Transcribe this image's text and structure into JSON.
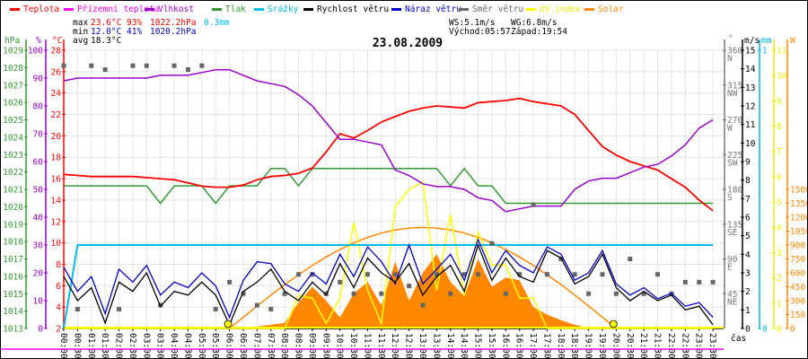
{
  "chart_data": {
    "type": "line",
    "title": "23.08.2009",
    "xlabel": "čas",
    "legend_placement": "top",
    "grid": true,
    "legend": [
      {
        "label": "Teplota",
        "color": "#ff0000"
      },
      {
        "label": "Přízemní teplota",
        "color": "#ff00ff"
      },
      {
        "label": "Vlhkost",
        "color": "#9900cc"
      },
      {
        "label": "Tlak",
        "color": "#339933"
      },
      {
        "label": "Srážky",
        "color": "#00bbee"
      },
      {
        "label": "Rychlost větru",
        "color": "#000000"
      },
      {
        "label": "Náraz větru",
        "color": "#0000cc"
      },
      {
        "label": "Směr větru",
        "color": "#666666"
      },
      {
        "label": "UV index",
        "color": "#ffff00"
      },
      {
        "label": "Solar",
        "color": "#ff8800"
      }
    ],
    "stats": {
      "max_label": "max",
      "max_temp": "23.6°C",
      "max_hum": "93%",
      "max_press": "1022.2hPa",
      "max_rain": "0.3mm",
      "min_label": "min",
      "min_temp": "12.0°C",
      "min_hum": "41%",
      "min_press": "1020.2hPa",
      "avg_label": "avg",
      "avg_temp": "18.3°C",
      "ws": "WS:5.1m/s",
      "wg": "WG:6.8m/s",
      "sunrise": "Východ:05:57",
      "sunset": "Západ:19:54"
    },
    "x_ticks": [
      "00:00",
      "00:30",
      "01:00",
      "01:30",
      "02:00",
      "02:30",
      "03:00",
      "03:30",
      "04:00",
      "04:30",
      "05:00",
      "05:30",
      "06:00",
      "06:30",
      "07:00",
      "07:30",
      "08:00",
      "08:30",
      "09:00",
      "09:30",
      "10:00",
      "10:30",
      "11:00",
      "11:30",
      "12:00",
      "12:30",
      "13:00",
      "13:30",
      "14:00",
      "14:30",
      "15:00",
      "15:30",
      "16:00",
      "16:30",
      "17:00",
      "17:30",
      "18:00",
      "18:30",
      "19:00",
      "19:30",
      "20:00",
      "20:30",
      "21:00",
      "21:30",
      "22:00",
      "22:30",
      "23:00",
      "23:30"
    ],
    "axes": {
      "hpa": {
        "label": "hPa",
        "range": [
          1013,
          1029
        ],
        "ticks": [
          "1029",
          "1028",
          "1027",
          "1026",
          "1025",
          "1024",
          "1023",
          "1022",
          "1021",
          "1020",
          "1019",
          "1018",
          "1017",
          "1016",
          "1015",
          "1014",
          "1013"
        ],
        "color": "#339933"
      },
      "pct": {
        "label": "%",
        "range": [
          0,
          100
        ],
        "ticks": [
          "100",
          "90",
          "80",
          "70",
          "60",
          "50",
          "40",
          "30",
          "20",
          "10",
          "0"
        ],
        "color": "#9900cc"
      },
      "temp": {
        "label": "°C",
        "range": [
          2,
          28
        ],
        "ticks": [
          "28",
          "26",
          "24",
          "22",
          "20",
          "18",
          "16",
          "14",
          "12",
          "10",
          "8",
          "6",
          "4",
          "2"
        ],
        "color": "#ff0000"
      },
      "dir": {
        "label": "°",
        "range": [
          0,
          360
        ],
        "ticks": [
          "360",
          "315",
          "270",
          "225",
          "180",
          "135",
          "90",
          "45"
        ],
        "names": [
          "N",
          "NW",
          "W",
          "SW",
          "S",
          "SE",
          "E",
          "NE"
        ],
        "color": "#777777"
      },
      "ms": {
        "label": "m/s",
        "range": [
          0,
          15
        ],
        "ticks": [
          "15",
          "14",
          "13",
          "12",
          "11",
          "10",
          "9",
          "8",
          "7",
          "6",
          "5",
          "4",
          "3",
          "2",
          "1",
          "0"
        ],
        "color": "#000000"
      },
      "mm": {
        "label": "mm",
        "range": [
          0,
          1
        ],
        "ticks": [
          "1",
          "0"
        ],
        "color": "#00bbee"
      },
      "uv": {
        "range": [
          0,
          11
        ],
        "ticks": [
          "11",
          "10",
          "9",
          "8",
          "7",
          "6",
          "5",
          "4",
          "3",
          "2",
          "1",
          "0"
        ],
        "color": "#eeee00"
      },
      "w": {
        "label": "W",
        "range": [
          0,
          3000
        ],
        "ticks": [
          "1500",
          "1350",
          "1200",
          "1050",
          "900",
          "750",
          "600",
          "450",
          "300",
          "150",
          "0"
        ],
        "color": "#ff8800"
      }
    },
    "x_hours": [
      0,
      0.5,
      1,
      1.5,
      2,
      2.5,
      3,
      3.5,
      4,
      4.5,
      5,
      5.5,
      6,
      6.5,
      7,
      7.5,
      8,
      8.5,
      9,
      9.5,
      10,
      10.5,
      11,
      11.5,
      12,
      12.5,
      13,
      13.5,
      14,
      14.5,
      15,
      15.5,
      16,
      16.5,
      17,
      17.5,
      18,
      18.5,
      19,
      19.5,
      20,
      20.5,
      21,
      21.5,
      22,
      22.5,
      23,
      23.5
    ],
    "series": {
      "temperature": [
        16.4,
        16.3,
        16.2,
        16.2,
        16.2,
        16.2,
        16.1,
        16.0,
        15.9,
        15.6,
        15.3,
        15.2,
        15.2,
        15.4,
        15.9,
        16.2,
        16.3,
        16.5,
        17.0,
        18.5,
        20.2,
        19.8,
        20.5,
        21.3,
        21.8,
        22.3,
        22.6,
        22.8,
        22.7,
        22.6,
        23.1,
        23.2,
        23.3,
        23.5,
        23.2,
        23.0,
        22.8,
        22.0,
        20.5,
        19.0,
        18.2,
        17.6,
        17.2,
        16.8,
        16.0,
        15.2,
        14.0,
        13.0
      ],
      "humidity": [
        89,
        90,
        90,
        90,
        90,
        90,
        90,
        91,
        91,
        91,
        92,
        93,
        93,
        91,
        89,
        88,
        87,
        84,
        80,
        74,
        68,
        68,
        67,
        66,
        57,
        55,
        52,
        51,
        51,
        50,
        47,
        46,
        42,
        43,
        44,
        44,
        44,
        50,
        53,
        54,
        54,
        56,
        58,
        59,
        62,
        66,
        72,
        75
      ],
      "pressure": [
        1021.2,
        1021.2,
        1021.2,
        1021.2,
        1021.2,
        1021.2,
        1021.2,
        1020.2,
        1021.2,
        1021.2,
        1021.2,
        1020.2,
        1021.2,
        1021.2,
        1021.2,
        1022.2,
        1022.2,
        1021.2,
        1022.2,
        1022.2,
        1022.2,
        1022.2,
        1022.2,
        1022.2,
        1022.2,
        1022.2,
        1022.2,
        1022.2,
        1021.2,
        1022.2,
        1021.2,
        1021.2,
        1020.2,
        1020.2,
        1020.2,
        1020.2,
        1020.2,
        1020.2,
        1020.2,
        1020.2,
        1020.2,
        1020.2,
        1020.2,
        1020.2,
        1020.2,
        1020.2,
        1020.2,
        1020.2
      ],
      "rain": [
        0,
        0.3,
        0.3,
        0.3,
        0.3,
        0.3,
        0.3,
        0.3,
        0.3,
        0.3,
        0.3,
        0.3,
        0.3,
        0.3,
        0.3,
        0.3,
        0.3,
        0.3,
        0.3,
        0.3,
        0.3,
        0.3,
        0.3,
        0.3,
        0.3,
        0.3,
        0.3,
        0.3,
        0.3,
        0.3,
        0.3,
        0.3,
        0.3,
        0.3,
        0.3,
        0.3,
        0.3,
        0.3,
        0.3,
        0.3,
        0.3,
        0.3,
        0.3,
        0.3,
        0.3,
        0.3,
        0.3,
        0.3
      ],
      "wind_speed": [
        2.8,
        1.5,
        2.2,
        0.3,
        2.5,
        2.0,
        3.0,
        1.2,
        2.0,
        1.8,
        2.5,
        1.8,
        0.2,
        2.0,
        2.5,
        3.2,
        2.0,
        1.5,
        2.5,
        1.8,
        3.5,
        2.2,
        3.8,
        3.0,
        2.5,
        3.5,
        1.8,
        2.8,
        3.4,
        2.0,
        4.5,
        2.6,
        3.8,
        2.8,
        2.5,
        4.2,
        3.8,
        2.4,
        2.8,
        4.0,
        2.2,
        1.5,
        2.0,
        1.5,
        1.8,
        1.0,
        1.2,
        0.2
      ],
      "wind_gust": [
        3.3,
        2.0,
        2.8,
        0.8,
        3.2,
        2.5,
        3.4,
        1.8,
        2.5,
        2.2,
        3.0,
        2.3,
        0.6,
        2.6,
        3.6,
        3.5,
        2.4,
        2.0,
        3.0,
        2.4,
        4.0,
        2.8,
        4.4,
        3.6,
        2.4,
        4.5,
        2.4,
        3.2,
        4.0,
        2.6,
        4.8,
        3.0,
        4.2,
        3.4,
        3.0,
        4.4,
        4.0,
        2.6,
        3.0,
        4.2,
        2.4,
        1.8,
        2.2,
        1.6,
        1.9,
        1.2,
        1.4,
        0.6
      ],
      "wind_dir": [
        340,
        25,
        340,
        335,
        25,
        340,
        340,
        30,
        340,
        335,
        340,
        25,
        60,
        45,
        30,
        25,
        45,
        70,
        70,
        45,
        60,
        45,
        70,
        45,
        70,
        55,
        30,
        70,
        45,
        70,
        70,
        110,
        45,
        70,
        160,
        70,
        90,
        70,
        45,
        70,
        45,
        90,
        45,
        70,
        45,
        60,
        60,
        60
      ],
      "uv": [
        0,
        0,
        0,
        0,
        0,
        0,
        0,
        0,
        0,
        0,
        0,
        0,
        0,
        0,
        0,
        0,
        0,
        1.3,
        1.2,
        0.2,
        1.2,
        4.2,
        1.5,
        0.2,
        4.8,
        5.5,
        5.8,
        1.5,
        4.5,
        1.3,
        3.8,
        2.5,
        2.5,
        1.2,
        1.2,
        0,
        0,
        0,
        0,
        0,
        0,
        0,
        0,
        0,
        0,
        0,
        0,
        0
      ],
      "solar": [
        0,
        0,
        0,
        0,
        0,
        0,
        0,
        0,
        0,
        0,
        0,
        0,
        0,
        10,
        20,
        40,
        60,
        280,
        450,
        300,
        120,
        380,
        500,
        250,
        720,
        300,
        600,
        800,
        500,
        350,
        750,
        450,
        550,
        520,
        230,
        150,
        90,
        40,
        5,
        0,
        0,
        0,
        0,
        0,
        0,
        0,
        0,
        0
      ],
      "solar_clear_sky": [
        0,
        0,
        0,
        0,
        0,
        0,
        0,
        0,
        0,
        0,
        0,
        0,
        0,
        122,
        243,
        360,
        473,
        579,
        680,
        771,
        852,
        923,
        982,
        1029,
        1063,
        1083,
        1090,
        1083,
        1063,
        1029,
        982,
        923,
        852,
        771,
        680,
        579,
        473,
        360,
        243,
        122,
        0,
        0,
        0,
        0,
        0,
        0,
        0,
        0
      ]
    },
    "sun_markers_hours": [
      5.95,
      19.9
    ]
  }
}
